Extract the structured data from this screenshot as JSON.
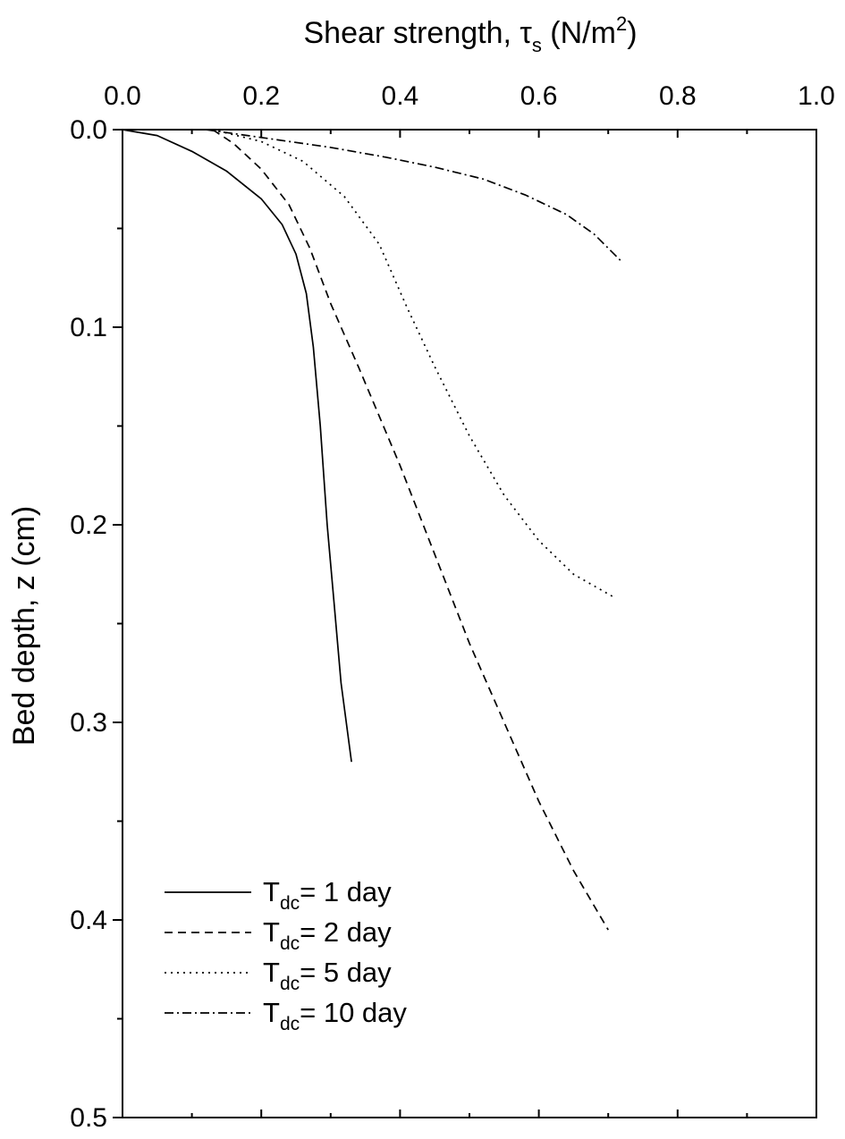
{
  "chart_data": {
    "type": "line",
    "xlabel": {
      "prefix": "Shear strength, ",
      "symbol": "τ",
      "symbol_sub": "s",
      "unit_open": " (N/m",
      "unit_sup": "2",
      "unit_close": ")"
    },
    "ylabel": "Bed depth, z (cm)",
    "xlim": [
      0.0,
      1.0
    ],
    "ylim": [
      0.0,
      0.5
    ],
    "x_axis_position": "top",
    "y_inverted": true,
    "grid": false,
    "legend_position": "bottom-left",
    "x_ticks": [
      "0.0",
      "0.2",
      "0.4",
      "0.6",
      "0.8",
      "1.0"
    ],
    "y_ticks": [
      "0.0",
      "0.1",
      "0.2",
      "0.3",
      "0.4",
      "0.5"
    ],
    "series": [
      {
        "name": "T",
        "legend_sub": "dc",
        "legend_rest": "= 1 day",
        "dash": "solid",
        "points": [
          [
            0.0,
            0.0
          ],
          [
            0.05,
            0.003
          ],
          [
            0.1,
            0.011
          ],
          [
            0.15,
            0.021
          ],
          [
            0.2,
            0.035
          ],
          [
            0.23,
            0.048
          ],
          [
            0.25,
            0.063
          ],
          [
            0.265,
            0.083
          ],
          [
            0.275,
            0.11
          ],
          [
            0.285,
            0.15
          ],
          [
            0.295,
            0.2
          ],
          [
            0.305,
            0.24
          ],
          [
            0.315,
            0.28
          ],
          [
            0.33,
            0.32
          ]
        ]
      },
      {
        "name": "T",
        "legend_sub": "dc",
        "legend_rest": "= 2 day",
        "dash": "dashed",
        "points": [
          [
            0.13,
            0.0
          ],
          [
            0.16,
            0.007
          ],
          [
            0.2,
            0.02
          ],
          [
            0.24,
            0.038
          ],
          [
            0.27,
            0.06
          ],
          [
            0.3,
            0.088
          ],
          [
            0.34,
            0.12
          ],
          [
            0.4,
            0.17
          ],
          [
            0.45,
            0.215
          ],
          [
            0.5,
            0.26
          ],
          [
            0.55,
            0.3
          ],
          [
            0.6,
            0.34
          ],
          [
            0.65,
            0.375
          ],
          [
            0.7,
            0.405
          ]
        ]
      },
      {
        "name": "T",
        "legend_sub": "dc",
        "legend_rest": "= 5 day",
        "dash": "dotted",
        "points": [
          [
            0.13,
            0.0
          ],
          [
            0.2,
            0.006
          ],
          [
            0.26,
            0.016
          ],
          [
            0.32,
            0.034
          ],
          [
            0.37,
            0.058
          ],
          [
            0.41,
            0.09
          ],
          [
            0.45,
            0.12
          ],
          [
            0.5,
            0.155
          ],
          [
            0.55,
            0.185
          ],
          [
            0.6,
            0.208
          ],
          [
            0.65,
            0.225
          ],
          [
            0.71,
            0.237
          ]
        ]
      },
      {
        "name": "T",
        "legend_sub": "dc",
        "legend_rest": "= 10 day",
        "dash": "dashdot",
        "points": [
          [
            0.12,
            0.0
          ],
          [
            0.2,
            0.004
          ],
          [
            0.3,
            0.009
          ],
          [
            0.38,
            0.014
          ],
          [
            0.45,
            0.019
          ],
          [
            0.52,
            0.025
          ],
          [
            0.58,
            0.033
          ],
          [
            0.64,
            0.043
          ],
          [
            0.68,
            0.053
          ],
          [
            0.72,
            0.067
          ]
        ]
      }
    ]
  }
}
